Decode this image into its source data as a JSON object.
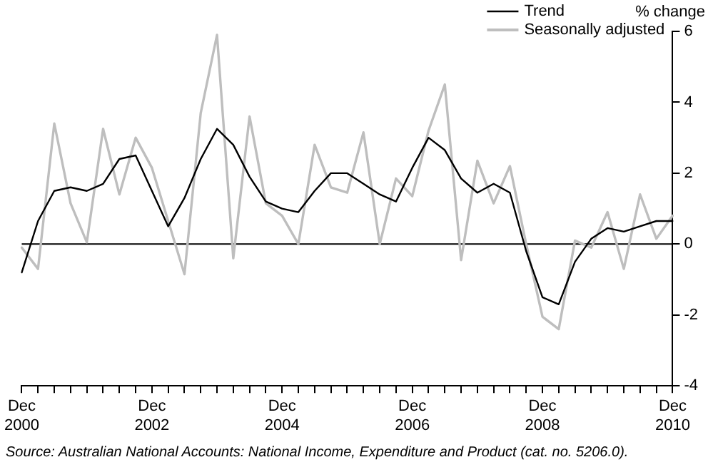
{
  "chart_data": {
    "type": "line",
    "ylabel": "% change",
    "categories": [
      "Dec 2000",
      null,
      null,
      null,
      null,
      null,
      null,
      null,
      "Dec 2002",
      null,
      null,
      null,
      null,
      null,
      null,
      null,
      "Dec 2004",
      null,
      null,
      null,
      null,
      null,
      null,
      null,
      "Dec 2006",
      null,
      null,
      null,
      null,
      null,
      null,
      null,
      "Dec 2008",
      null,
      null,
      null,
      null,
      null,
      null,
      null,
      "Dec 2010"
    ],
    "series": [
      {
        "name": "Trend",
        "color": "#000000",
        "values": [
          -0.8,
          0.65,
          1.5,
          1.6,
          1.5,
          1.7,
          2.4,
          2.5,
          1.5,
          0.5,
          1.3,
          2.4,
          3.25,
          2.8,
          1.9,
          1.2,
          1.0,
          0.9,
          1.5,
          2.0,
          2.0,
          1.7,
          1.4,
          1.2,
          2.15,
          3.0,
          2.65,
          1.85,
          1.45,
          1.7,
          1.45,
          -0.2,
          -1.5,
          -1.7,
          -0.5,
          0.15,
          0.45,
          0.35,
          0.5,
          0.65,
          0.65
        ]
      },
      {
        "name": "Seasonally adjusted",
        "color": "#bebebe",
        "values": [
          -0.1,
          -0.7,
          3.4,
          1.15,
          0.05,
          3.25,
          1.4,
          3.0,
          2.15,
          0.65,
          -0.85,
          3.7,
          5.9,
          -0.4,
          3.6,
          1.15,
          0.8,
          0.0,
          2.8,
          1.6,
          1.45,
          3.15,
          0.0,
          1.85,
          1.35,
          3.2,
          4.5,
          -0.45,
          2.35,
          1.15,
          2.2,
          0.0,
          -2.05,
          -2.4,
          0.1,
          -0.1,
          0.9,
          -0.7,
          1.4,
          0.15,
          0.8
        ]
      }
    ],
    "ylim": [
      -4,
      6
    ],
    "yticks": [
      -4,
      -2,
      0,
      2,
      4,
      6
    ],
    "grid": false,
    "legend": "top right",
    "marker": "none",
    "line_style": "solid",
    "ref_lines": [
      {
        "axis": "y",
        "value": 0,
        "color": "#000000"
      }
    ],
    "annotations": [
      "Source: Australian National Accounts: National Income, Expenditure and Product (cat. no. 5206.0)."
    ]
  }
}
